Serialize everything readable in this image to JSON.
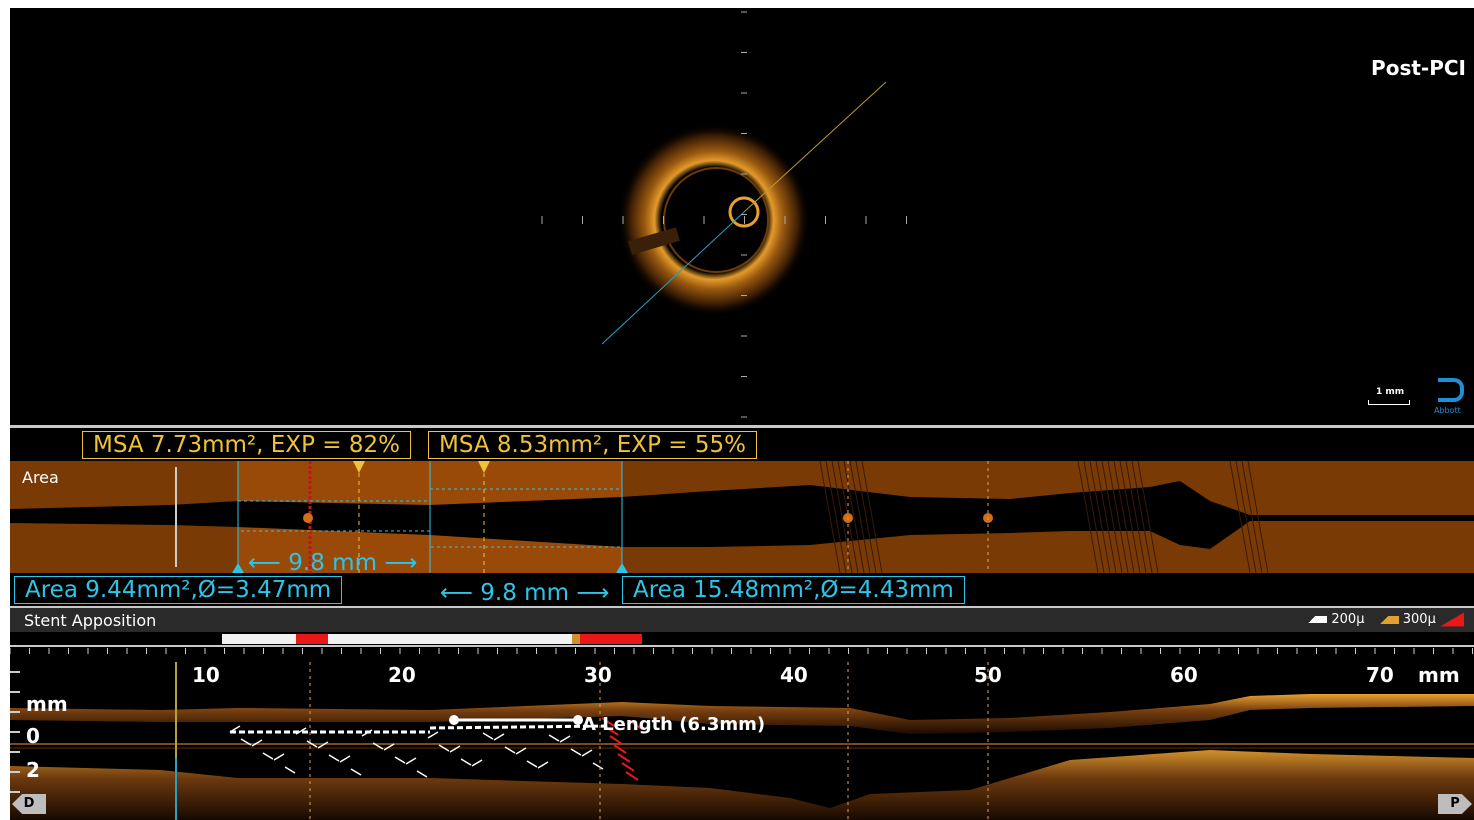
{
  "view": {
    "title": "Post-PCI",
    "scale_label": "1 mm",
    "logo_text": "Abbott"
  },
  "area_panel": {
    "label": "Area",
    "msa_boxes": [
      {
        "text": "MSA 7.73mm², EXP = 82%"
      },
      {
        "text": "MSA 8.53mm², EXP = 55%"
      }
    ],
    "measurements": [
      {
        "text": "Area 9.44mm²,Ø=3.47mm"
      },
      {
        "text": "Area 15.48mm²,Ø=4.43mm"
      }
    ],
    "lengths": [
      {
        "text": "9.8 mm"
      },
      {
        "text": "9.8 mm"
      }
    ]
  },
  "stent_apposition": {
    "label": "Stent Apposition",
    "legend": [
      "200μ",
      "300μ"
    ]
  },
  "longitudinal": {
    "ticks": [
      "10",
      "20",
      "30",
      "40",
      "50",
      "60",
      "70"
    ],
    "unit": "mm",
    "depth_unit": "mm",
    "depth_labels": [
      "0",
      "2"
    ],
    "length_annotation": "A Length (6.3mm)",
    "distal_label": "D",
    "proximal_label": "P"
  },
  "colors": {
    "accent_cyan": "#2ec4e8",
    "msa_yellow": "#f0c23a",
    "area_orange": "#7a3a06",
    "malapposition_red": "#e81818"
  }
}
